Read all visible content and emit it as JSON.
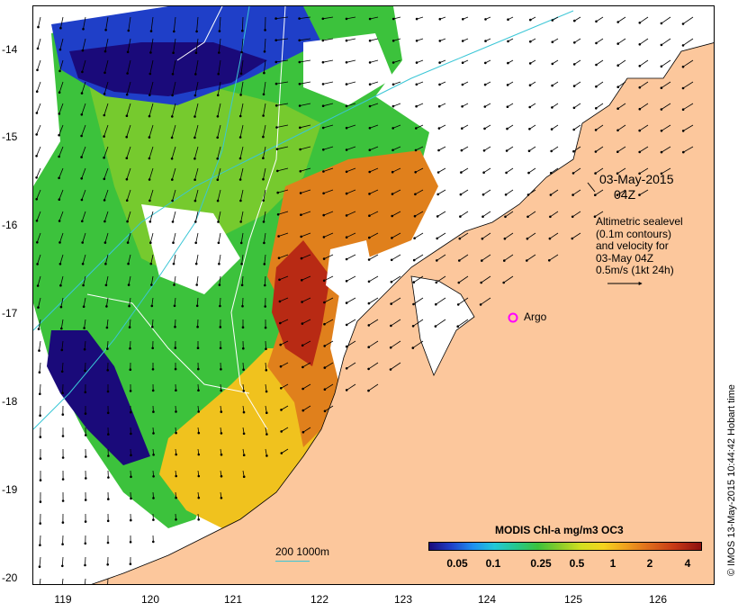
{
  "map": {
    "lat_ticks": [
      "-14",
      "-15",
      "-16",
      "-17",
      "-18",
      "-19",
      "-20"
    ],
    "lon_ticks": [
      "119",
      "120",
      "121",
      "122",
      "123",
      "124",
      "125",
      "126"
    ],
    "date": "03-May-2015",
    "time": "04Z",
    "altimetry_lines": [
      "Altimetric sealevel",
      "(0.1m contours)",
      "and velocity for",
      "03-May 04Z",
      "0.5m/s (1kt 24h)"
    ],
    "argo_label": "Argo",
    "colorbar_title": "MODIS Chl-a mg/m3 OC3",
    "colorbar_ticks": [
      "0.05",
      "0.1",
      "0.25",
      "0.5",
      "1",
      "2",
      "4"
    ],
    "bathymetry_label": "200  1000m",
    "credit": "© IMOS 13-May-2015 10:44:42 Hobart time",
    "colors": {
      "land": "#fcc79c",
      "chl_low": "#1a0a7a",
      "chl_mid": "#3cc23c",
      "chl_high": "#8c1010",
      "argo_marker": "#ff00ff",
      "bathymetry_contour": "#3ac6d6"
    }
  }
}
